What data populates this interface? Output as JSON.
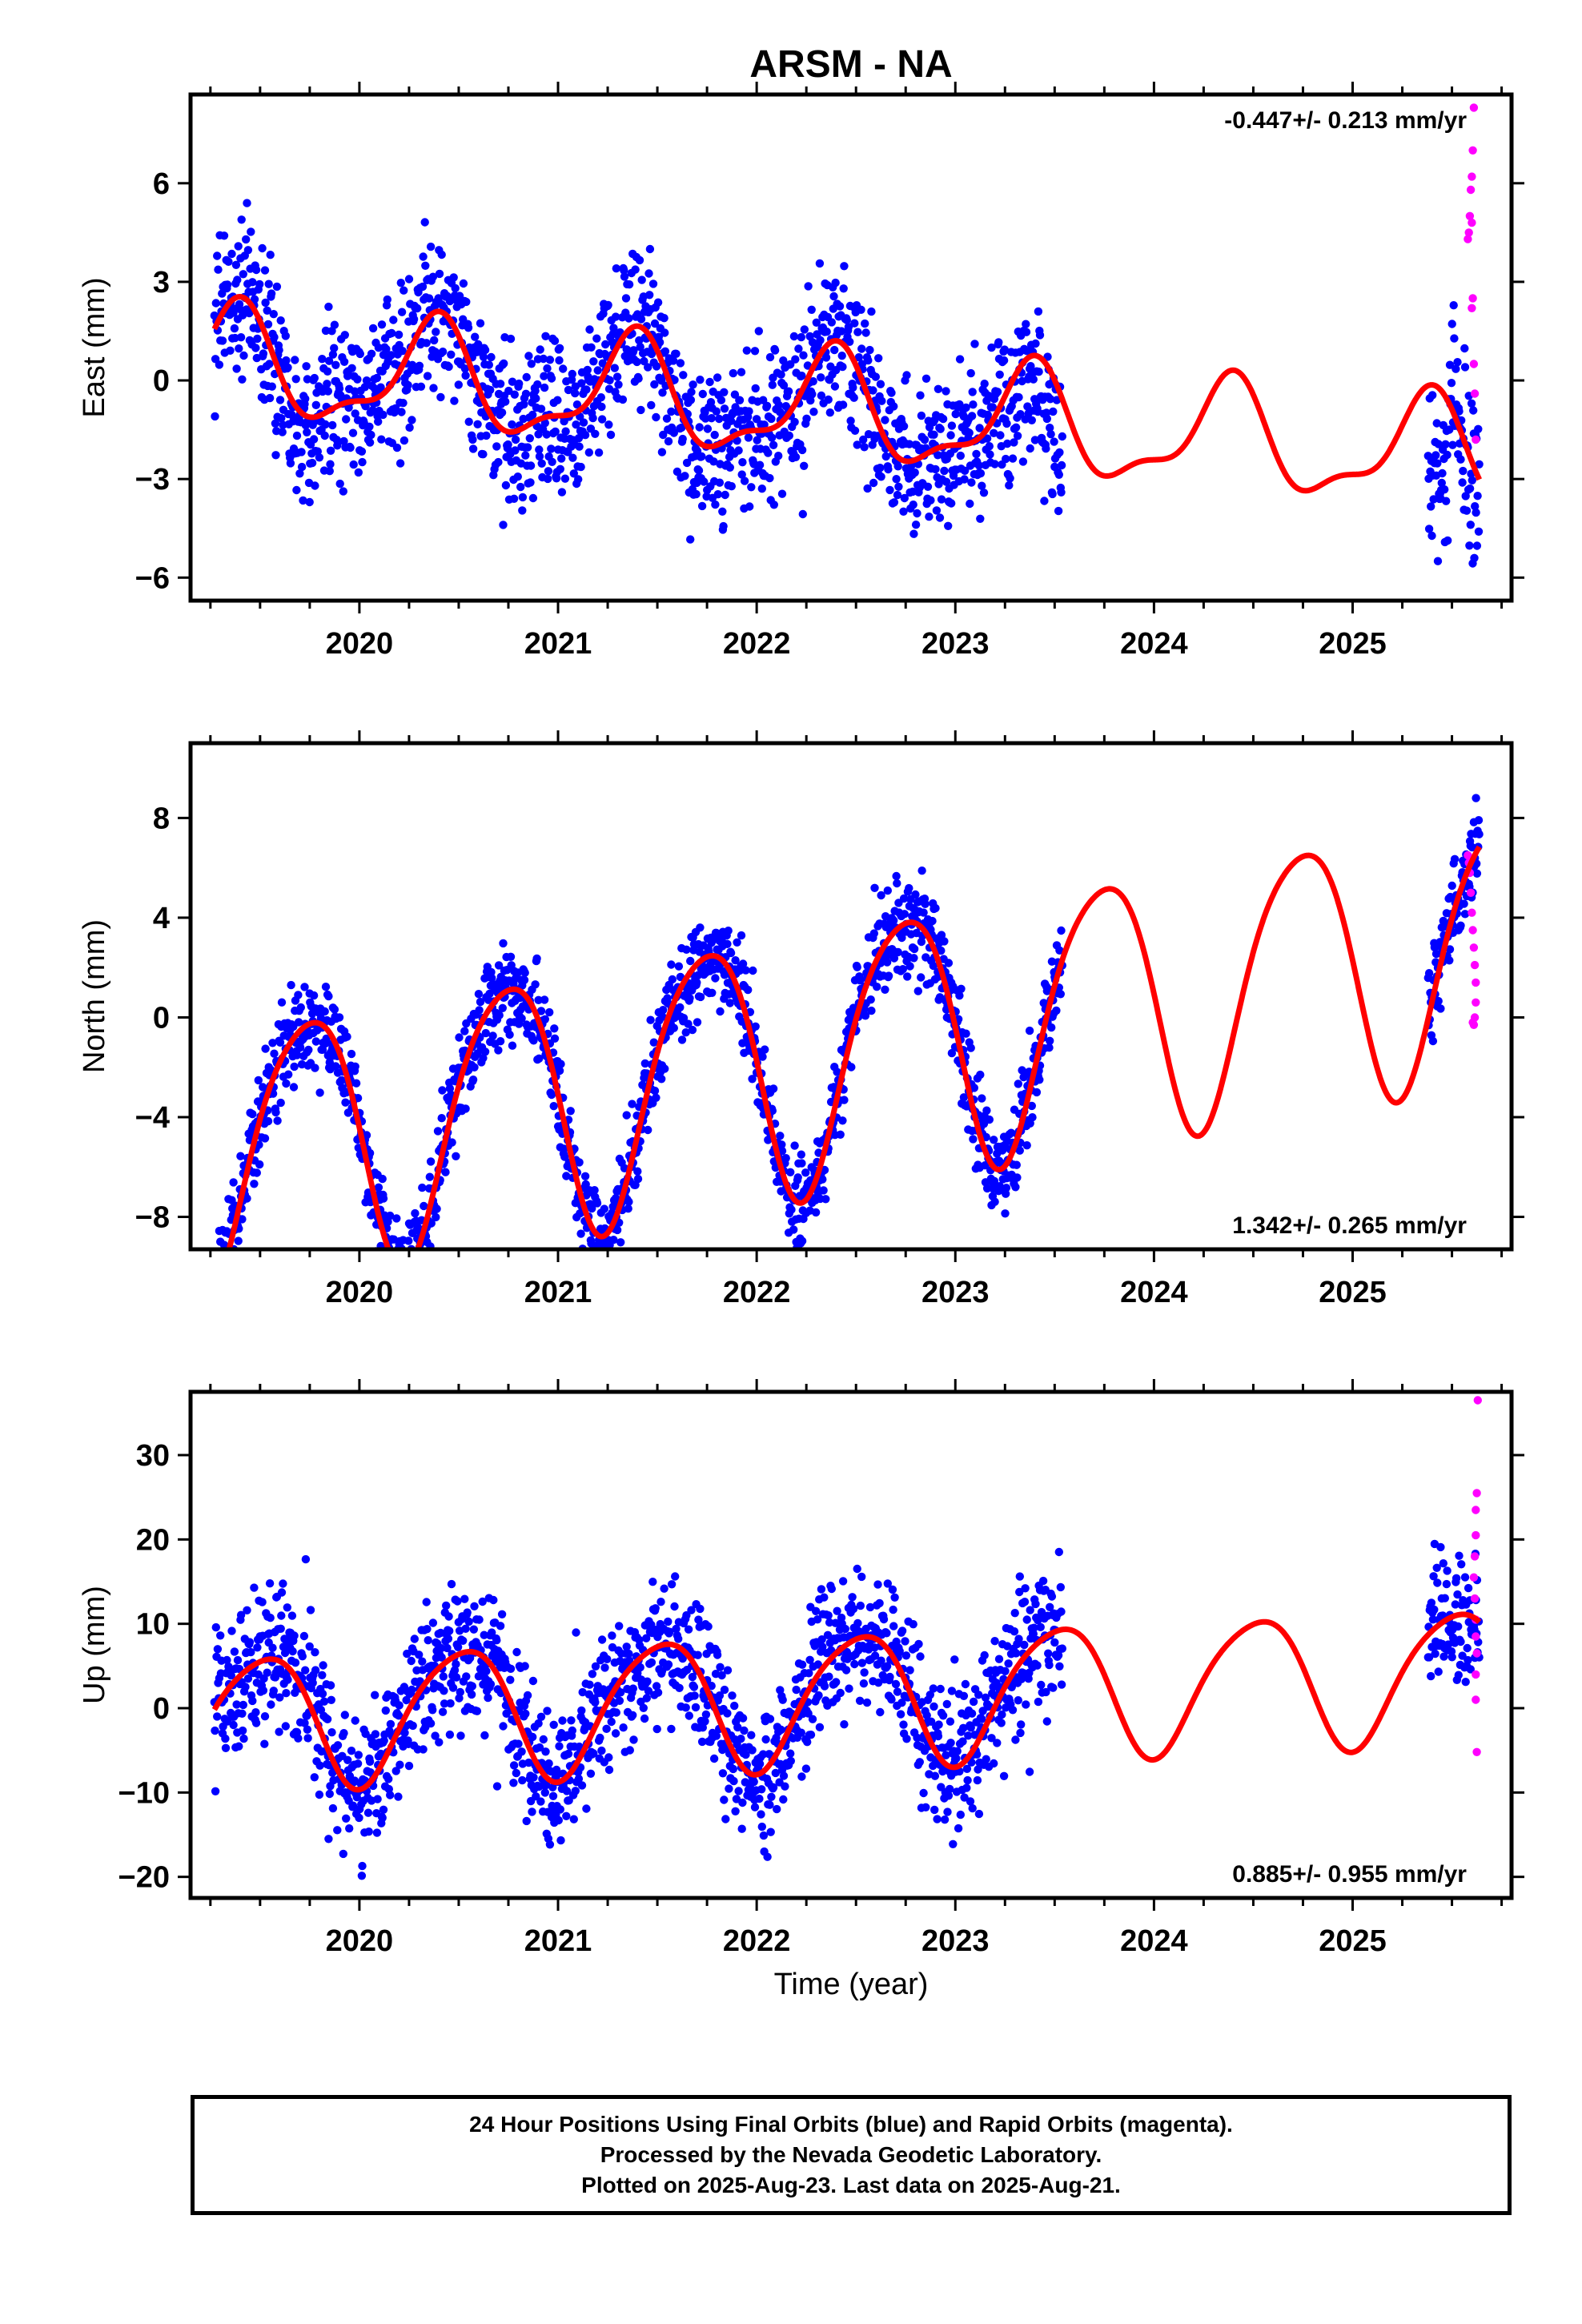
{
  "title": "ARSM - NA",
  "colors": {
    "final": "#0000ff",
    "rapid": "#ff00ff",
    "model": "#ff0000",
    "frame": "#000000"
  },
  "xlabel": "Time (year)",
  "footer": {
    "line1": "24 Hour Positions Using Final Orbits (blue) and Rapid Orbits (magenta).",
    "line2": "Processed by the Nevada Geodetic Laboratory.",
    "line3": "Plotted on 2025-Aug-23. Last data on 2025-Aug-21."
  },
  "chart_data": [
    {
      "type": "scatter",
      "component": "east",
      "ylabel": "East (mm)",
      "annotation": "-0.447+/- 0.213 mm/yr",
      "annotation_position": "top-right",
      "xlim": [
        2019.15,
        2025.8
      ],
      "ylim": [
        -6.7,
        8.7
      ],
      "xticks": [
        2020,
        2021,
        2022,
        2023,
        2024,
        2025
      ],
      "yticks": [
        -6,
        -3,
        0,
        3,
        6
      ],
      "data_start": 2019.27,
      "final_end": 2023.54,
      "gap_end": 2025.38,
      "series_end": 2025.64,
      "rate": -0.447,
      "offset": 0.5,
      "annual": [
        -1.1,
        1.1
      ],
      "semiannual": [
        0.3,
        -0.5
      ],
      "noise": 1.2,
      "extra": [
        {
          "from": 2023.25,
          "to": 2023.54,
          "shift": -1.2
        },
        {
          "from": 2025.38,
          "to": 2025.48,
          "shift": -2.5
        }
      ],
      "rapid_points": [
        {
          "x": 2025.58,
          "y": 4.3
        },
        {
          "x": 2025.585,
          "y": 4.5
        },
        {
          "x": 2025.59,
          "y": 5.0
        },
        {
          "x": 2025.595,
          "y": 5.8
        },
        {
          "x": 2025.6,
          "y": 6.2
        },
        {
          "x": 2025.605,
          "y": 7.0
        },
        {
          "x": 2025.61,
          "y": 8.3
        },
        {
          "x": 2025.6,
          "y": 4.8
        },
        {
          "x": 2025.6,
          "y": 2.2
        },
        {
          "x": 2025.605,
          "y": 2.5
        },
        {
          "x": 2025.61,
          "y": 0.5
        },
        {
          "x": 2025.615,
          "y": -0.4
        },
        {
          "x": 2025.62,
          "y": -1.8
        }
      ]
    },
    {
      "type": "scatter",
      "component": "north",
      "ylabel": "North (mm)",
      "annotation": "1.342+/- 0.265 mm/yr",
      "annotation_position": "bottom-right",
      "xlim": [
        2019.15,
        2025.8
      ],
      "ylim": [
        -9.3,
        11.0
      ],
      "xticks": [
        2020,
        2021,
        2022,
        2023,
        2024,
        2025
      ],
      "yticks": [
        -8,
        -4,
        0,
        4,
        8
      ],
      "data_start": 2019.27,
      "final_end": 2023.54,
      "gap_end": 2025.38,
      "series_end": 2025.64,
      "rate": 1.342,
      "offset": -5.5,
      "annual": [
        -0.5,
        -5.2
      ],
      "semiannual": [
        0.6,
        -0.4
      ],
      "noise": 1.0,
      "extra": [],
      "rapid_points": [
        {
          "x": 2025.58,
          "y": 6.5
        },
        {
          "x": 2025.585,
          "y": 6.2
        },
        {
          "x": 2025.59,
          "y": 5.8
        },
        {
          "x": 2025.595,
          "y": 5.0
        },
        {
          "x": 2025.6,
          "y": 4.2
        },
        {
          "x": 2025.605,
          "y": 3.5
        },
        {
          "x": 2025.61,
          "y": 2.8
        },
        {
          "x": 2025.615,
          "y": 2.1
        },
        {
          "x": 2025.62,
          "y": 1.4
        },
        {
          "x": 2025.62,
          "y": 0.6
        },
        {
          "x": 2025.615,
          "y": 0.0
        },
        {
          "x": 2025.61,
          "y": -0.3
        },
        {
          "x": 2025.605,
          "y": -0.2
        }
      ]
    },
    {
      "type": "scatter",
      "component": "up",
      "ylabel": "Up (mm)",
      "annotation": "0.885+/- 0.955 mm/yr",
      "annotation_position": "bottom-right",
      "xlim": [
        2019.15,
        2025.8
      ],
      "ylim": [
        -22.5,
        37.5
      ],
      "xticks": [
        2020,
        2021,
        2022,
        2023,
        2024,
        2025
      ],
      "yticks": [
        -20,
        -10,
        0,
        10,
        20,
        30
      ],
      "data_start": 2019.27,
      "final_end": 2023.54,
      "gap_end": 2025.38,
      "series_end": 2025.64,
      "rate": 0.885,
      "offset": -1.5,
      "annual": [
        -7.8,
        -0.5
      ],
      "semiannual": [
        -1.0,
        0.5
      ],
      "noise": 4.2,
      "extra": [],
      "rapid_points": [
        {
          "x": 2025.63,
          "y": 36.5
        },
        {
          "x": 2025.625,
          "y": 25.5
        },
        {
          "x": 2025.62,
          "y": 23.5
        },
        {
          "x": 2025.62,
          "y": 20.5
        },
        {
          "x": 2025.615,
          "y": 18.0
        },
        {
          "x": 2025.61,
          "y": 15.5
        },
        {
          "x": 2025.615,
          "y": 13.0
        },
        {
          "x": 2025.62,
          "y": 10.5
        },
        {
          "x": 2025.62,
          "y": 8.5
        },
        {
          "x": 2025.625,
          "y": 6.5
        },
        {
          "x": 2025.62,
          "y": 4.0
        },
        {
          "x": 2025.62,
          "y": 1.0
        },
        {
          "x": 2025.625,
          "y": -5.2
        }
      ]
    }
  ]
}
